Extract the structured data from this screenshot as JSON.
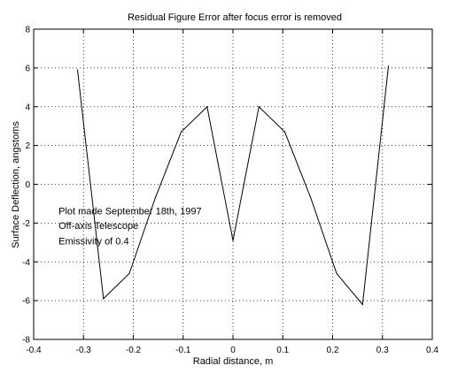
{
  "chart_data": {
    "type": "line",
    "title": "Residual Figure Error after focus error is removed",
    "xlabel": "Radial distance, m",
    "ylabel": "Surface Deflection, angstoms",
    "xlim": [
      -0.4,
      0.4
    ],
    "ylim": [
      -8,
      8
    ],
    "xticks": [
      -0.4,
      -0.3,
      -0.2,
      -0.1,
      0,
      0.1,
      0.2,
      0.3,
      0.4
    ],
    "xtick_labels": [
      "-0.4",
      "-0.3",
      "-0.2",
      "-0.1",
      "0",
      "0.1",
      "0.2",
      "0.3",
      "0.4"
    ],
    "yticks": [
      -8,
      -6,
      -4,
      -2,
      0,
      2,
      4,
      6,
      8
    ],
    "ytick_labels": [
      "-8",
      "-6",
      "-4",
      "-2",
      "0",
      "2",
      "4",
      "6",
      "8"
    ],
    "grid": true,
    "grid_style": "dotted",
    "series": [
      {
        "x": [
          -0.312,
          -0.26,
          -0.208,
          -0.156,
          -0.104,
          -0.052,
          0.0,
          0.052,
          0.104,
          0.156,
          0.208,
          0.26,
          0.312
        ],
        "y": [
          5.9,
          -5.9,
          -4.6,
          -0.7,
          2.7,
          4.0,
          -2.9,
          4.0,
          2.7,
          -0.7,
          -4.6,
          -6.2,
          6.1
        ],
        "color": "#000000"
      }
    ],
    "annotations": [
      {
        "text": "Plot made September 18th, 1997",
        "x": -0.35,
        "y": -1.55
      },
      {
        "text": "Off-axis Telescope",
        "x": -0.35,
        "y": -2.3
      },
      {
        "text": "Emissivity of 0.4",
        "x": -0.35,
        "y": -3.1
      }
    ]
  }
}
